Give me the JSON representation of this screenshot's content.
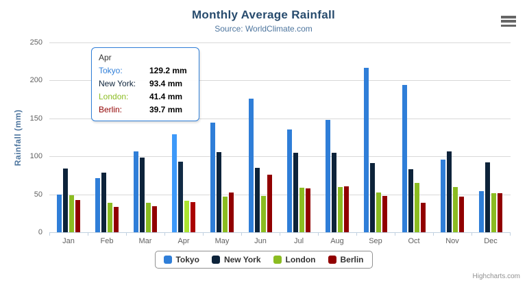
{
  "chart": {
    "title": "Monthly Average Rainfall",
    "subtitle": "Source: WorldClimate.com",
    "yaxis_title": "Rainfall (mm)",
    "credits": "Highcharts.com"
  },
  "chart_data": {
    "type": "bar",
    "title": "Monthly Average Rainfall",
    "subtitle": "Source: WorldClimate.com",
    "xlabel": "",
    "ylabel": "Rainfall (mm)",
    "ylim": [
      0,
      250
    ],
    "yticks": [
      0,
      50,
      100,
      150,
      200,
      250
    ],
    "grid": true,
    "legend_position": "bottom",
    "categories": [
      "Jan",
      "Feb",
      "Mar",
      "Apr",
      "May",
      "Jun",
      "Jul",
      "Aug",
      "Sep",
      "Oct",
      "Nov",
      "Dec"
    ],
    "series": [
      {
        "name": "Tokyo",
        "color": "#2f7ed8",
        "values": [
          49.9,
          71.5,
          106.4,
          129.2,
          144.0,
          176.0,
          135.6,
          148.5,
          216.4,
          194.1,
          95.6,
          54.4
        ]
      },
      {
        "name": "New York",
        "color": "#0d233a",
        "values": [
          83.6,
          78.8,
          98.5,
          93.4,
          106.0,
          84.5,
          105.0,
          104.3,
          91.2,
          83.5,
          106.6,
          92.3
        ]
      },
      {
        "name": "London",
        "color": "#8bbc21",
        "values": [
          48.9,
          38.8,
          39.3,
          41.4,
          47.0,
          48.3,
          59.0,
          59.6,
          52.4,
          65.2,
          59.3,
          51.2
        ]
      },
      {
        "name": "Berlin",
        "color": "#910000",
        "values": [
          42.4,
          33.2,
          34.5,
          39.7,
          52.6,
          75.5,
          57.4,
          60.4,
          47.6,
          39.1,
          46.8,
          51.1
        ]
      }
    ],
    "hover_category": "Apr"
  },
  "tooltip": {
    "category": "Apr",
    "rows": [
      {
        "series": "Tokyo",
        "color": "#2f7ed8",
        "value": "129.2 mm"
      },
      {
        "series": "New York",
        "color": "#0d233a",
        "value": "93.4 mm"
      },
      {
        "series": "London",
        "color": "#8bbc21",
        "value": "41.4 mm"
      },
      {
        "series": "Berlin",
        "color": "#910000",
        "value": "39.7 mm"
      }
    ]
  },
  "colors": {
    "title": "#274b6d",
    "subtitle": "#4d759e",
    "axis_labels": "#606060",
    "gridline": "#d8d8d8",
    "axis_line": "#c0d0e0",
    "tooltip_border": "#2f7ed8",
    "legend_border": "#909090",
    "credits": "#909090"
  }
}
